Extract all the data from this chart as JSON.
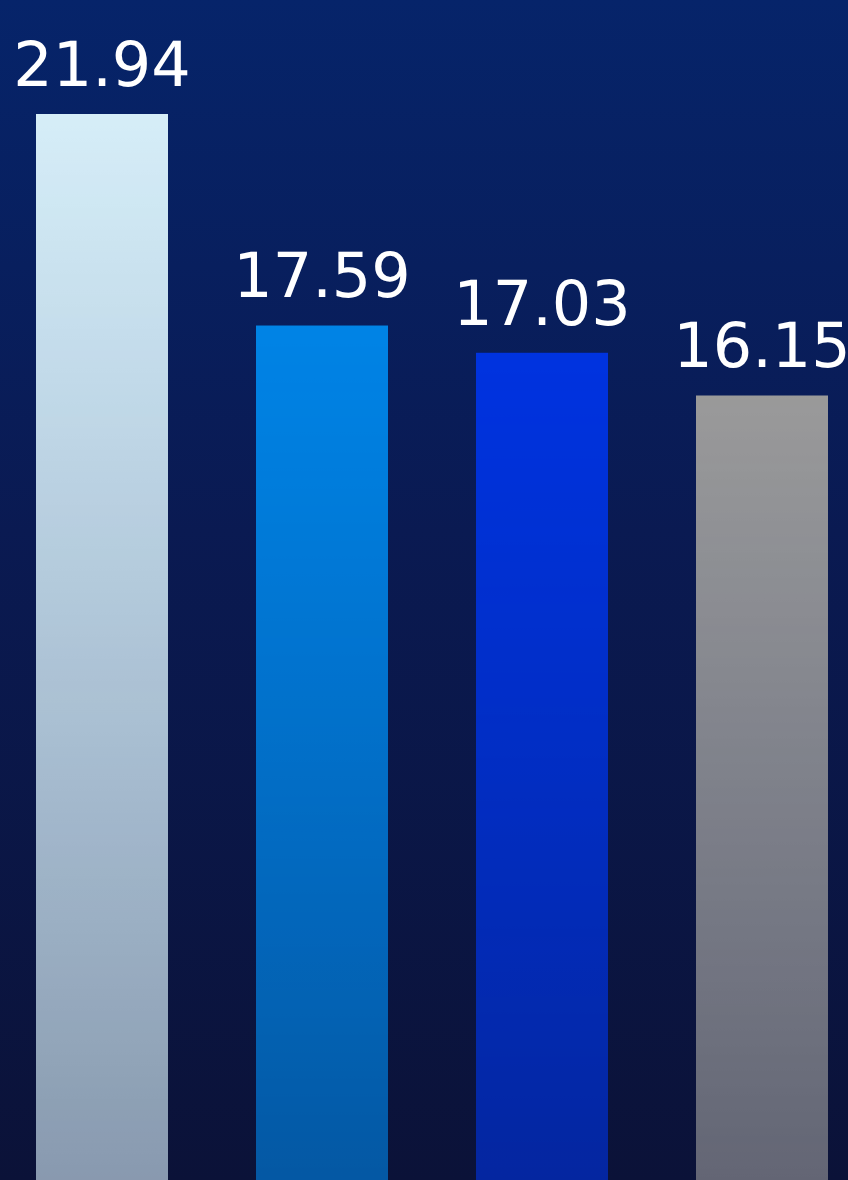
{
  "chart_data": {
    "type": "bar",
    "categories": [
      null,
      null,
      null,
      null
    ],
    "values": [
      21.94,
      17.59,
      17.03,
      16.15
    ],
    "colors": [
      "#d6eef8",
      "#0084e6",
      "#0033e0",
      "#9a9a9a"
    ],
    "data_labels": true
  }
}
